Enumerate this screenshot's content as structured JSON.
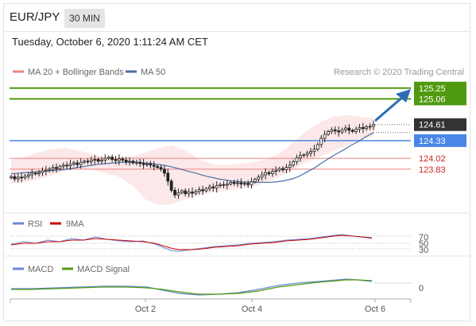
{
  "header": {
    "symbol": "EUR/JPY",
    "timeframe": "30 MIN",
    "datetime": "Tuesday, October 6, 2020 1:11:24 AM CET"
  },
  "legend": {
    "ma20": "MA 20 + Bollinger Bands",
    "ma50": "MA 50",
    "credit": "Research © 2020 Trading Central",
    "rsi": "RSI",
    "rsi_ma": "9MA",
    "macd": "MACD",
    "macd_signal": "MACD Signal"
  },
  "colors": {
    "ma20": "#f08080",
    "ma50": "#4a6fa5",
    "resistance": "#4f9a0f",
    "pivot": "#4a86e8",
    "support": "#f08080",
    "current": "#333333",
    "arrow": "#2e6db4"
  },
  "chart_data": [
    {
      "type": "candlestick",
      "ylim": [
        123.2,
        125.4
      ],
      "x_ticks": [
        "Oct 2",
        "Oct 4",
        "Oct 6"
      ],
      "levels": [
        {
          "value": 125.25,
          "label": "125.25",
          "kind": "resistance"
        },
        {
          "value": 125.06,
          "label": "125.06",
          "kind": "resistance"
        },
        {
          "value": 124.61,
          "label": "124.61",
          "kind": "current"
        },
        {
          "value": 124.33,
          "label": "124.33",
          "kind": "pivot"
        },
        {
          "value": 124.02,
          "label": "124.02",
          "kind": "support"
        },
        {
          "value": 123.83,
          "label": "123.83",
          "kind": "support"
        }
      ],
      "close_series": [
        123.7,
        123.66,
        123.69,
        123.68,
        123.71,
        123.73,
        123.76,
        123.75,
        123.77,
        123.8,
        123.81,
        123.83,
        123.86,
        123.84,
        123.88,
        123.9,
        123.89,
        123.92,
        123.94,
        123.91,
        123.95,
        123.97,
        123.96,
        123.99,
        124.0,
        123.97,
        123.99,
        124.02,
        124.04,
        124.0,
        123.98,
        124.01,
        123.99,
        123.96,
        123.97,
        123.94,
        123.95,
        123.93,
        123.91,
        123.92,
        123.9,
        123.88,
        123.86,
        123.83,
        123.76,
        123.62,
        123.46,
        123.38,
        123.42,
        123.45,
        123.4,
        123.43,
        123.41,
        123.44,
        123.47,
        123.45,
        123.49,
        123.52,
        123.5,
        123.54,
        123.56,
        123.55,
        123.57,
        123.6,
        123.58,
        123.59,
        123.57,
        123.58,
        123.56,
        123.61,
        123.65,
        123.69,
        123.73,
        123.77,
        123.75,
        123.79,
        123.81,
        123.84,
        123.82,
        123.86,
        123.9,
        123.96,
        124.03,
        124.07,
        124.08,
        124.11,
        124.14,
        124.18,
        124.26,
        124.37,
        124.44,
        124.49,
        124.52,
        124.5,
        124.48,
        124.52,
        124.55,
        124.51,
        124.49,
        124.53,
        124.56,
        124.54,
        124.57,
        124.58,
        124.61
      ],
      "ma50": [
        123.75,
        123.76,
        123.77,
        123.78,
        123.79,
        123.8,
        123.81,
        123.82,
        123.84,
        123.86,
        123.88,
        123.9,
        123.92,
        123.93,
        123.94,
        123.95,
        123.95,
        123.95,
        123.94,
        123.93,
        123.91,
        123.89,
        123.86,
        123.83,
        123.79,
        123.76,
        123.72,
        123.69,
        123.66,
        123.64,
        123.62,
        123.61,
        123.6,
        123.6,
        123.6,
        123.6,
        123.61,
        123.63,
        123.66,
        123.71,
        123.78,
        123.85,
        123.94,
        124.02,
        124.1,
        124.17,
        124.25,
        124.32,
        124.4,
        124.47
      ],
      "bollinger_upper": [
        124.0,
        124.05,
        124.12,
        124.18,
        124.2,
        124.16,
        124.1,
        124.05,
        124.02,
        124.05,
        124.12,
        124.2,
        124.25,
        124.15,
        124.0,
        123.92,
        123.9,
        123.92,
        123.95,
        124.0,
        124.1,
        124.3,
        124.5,
        124.65,
        124.75,
        124.78,
        124.75,
        124.72
      ],
      "bollinger_lower": [
        123.58,
        123.6,
        123.65,
        123.72,
        123.8,
        123.85,
        123.82,
        123.76,
        123.7,
        123.55,
        123.3,
        123.2,
        123.22,
        123.3,
        123.38,
        123.42,
        123.45,
        123.48,
        123.52,
        123.6,
        123.7,
        123.82,
        123.95,
        124.05,
        124.15,
        124.25,
        124.35,
        124.4
      ]
    },
    {
      "type": "line",
      "name": "RSI",
      "levels": [
        "70",
        "50",
        "30"
      ],
      "ylim": [
        20,
        80
      ]
    },
    {
      "type": "line",
      "name": "MACD",
      "levels": [
        "0"
      ]
    }
  ]
}
